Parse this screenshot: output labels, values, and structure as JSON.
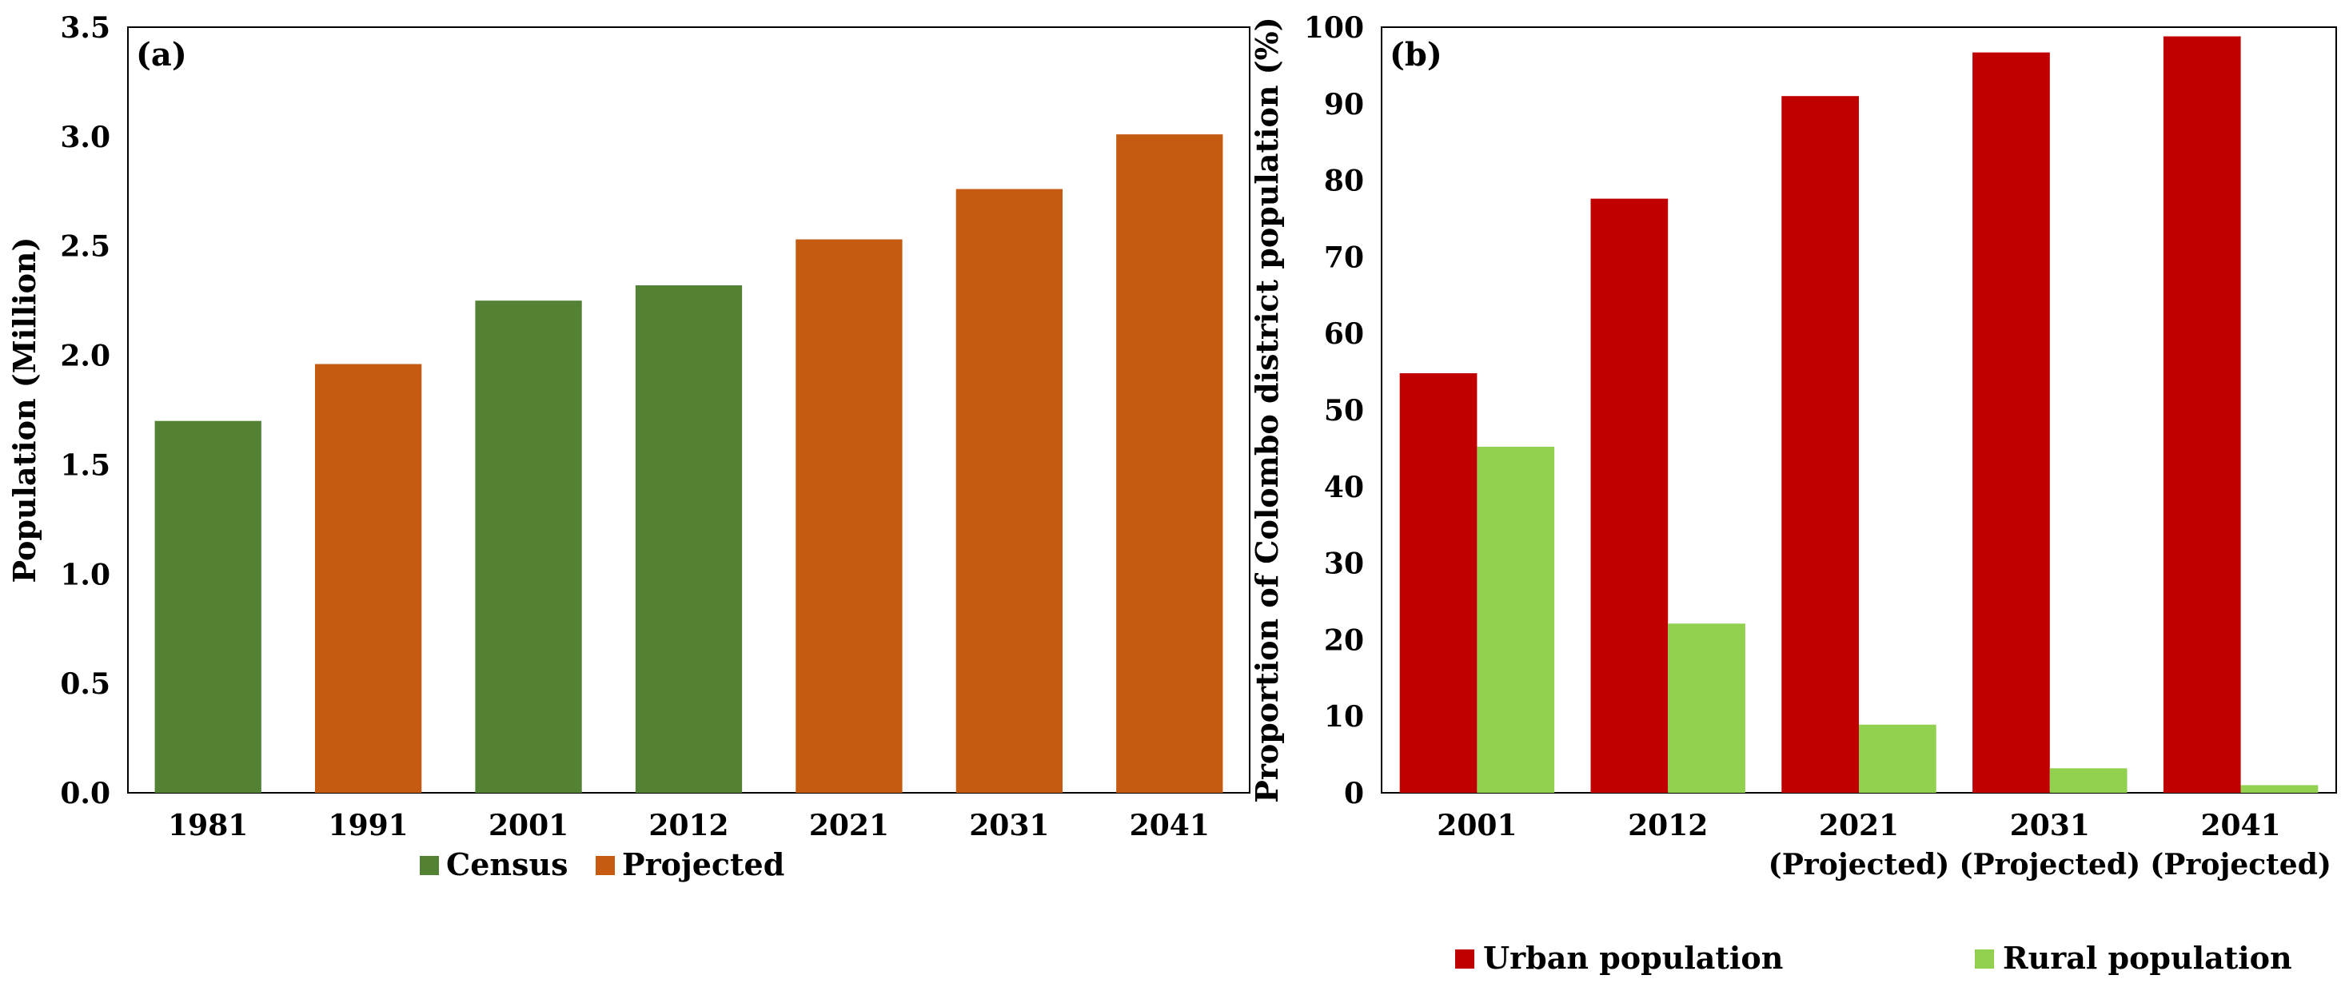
{
  "colors": {
    "census": "#548235",
    "projected": "#C55A11",
    "urban": "#C00000",
    "rural": "#92D050"
  },
  "chart_data": [
    {
      "type": "bar",
      "panel_label": "(a)",
      "title": "",
      "xlabel": "",
      "ylabel": "Population (Million)",
      "ylim": [
        0,
        3.5
      ],
      "yticks": [
        "0.0",
        "0.5",
        "1.0",
        "1.5",
        "2.0",
        "2.5",
        "3.0",
        "3.5"
      ],
      "categories": [
        "1981",
        "1991",
        "2001",
        "2012",
        "2021",
        "2031",
        "2041"
      ],
      "values": [
        1.7,
        1.96,
        2.25,
        2.32,
        2.53,
        2.76,
        3.01
      ],
      "kinds": [
        "census",
        "projected",
        "census",
        "census",
        "projected",
        "projected",
        "projected"
      ],
      "legend": [
        {
          "key": "census",
          "label": "Census"
        },
        {
          "key": "projected",
          "label": "Projected"
        }
      ],
      "legend_position": "bottom"
    },
    {
      "type": "bar",
      "panel_label": "(b)",
      "title": "",
      "xlabel": "",
      "ylabel": "Proportion of Colombo district population (%)",
      "ylim": [
        0,
        100
      ],
      "yticks": [
        "0",
        "10",
        "20",
        "30",
        "40",
        "50",
        "60",
        "70",
        "80",
        "90",
        "100"
      ],
      "categories": [
        {
          "line1": "2001",
          "line2": ""
        },
        {
          "line1": "2012",
          "line2": ""
        },
        {
          "line1": "2021",
          "line2": "(Projected)"
        },
        {
          "line1": "2031",
          "line2": "(Projected)"
        },
        {
          "line1": "2041",
          "line2": "(Projected)"
        }
      ],
      "series": [
        {
          "name": "Urban population",
          "key": "urban",
          "values": [
            54.8,
            77.6,
            91.0,
            96.7,
            98.8
          ]
        },
        {
          "name": "Rural population",
          "key": "rural",
          "values": [
            45.2,
            22.1,
            8.9,
            3.2,
            1.0
          ]
        }
      ],
      "legend_position": "bottom"
    }
  ]
}
